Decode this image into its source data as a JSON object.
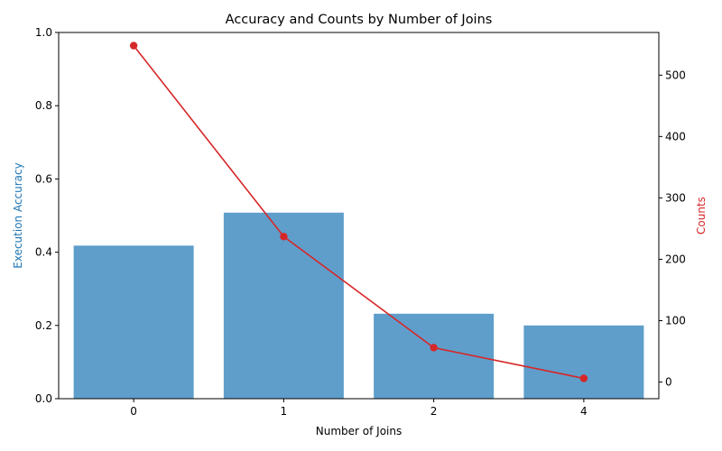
{
  "chart_data": {
    "type": "bar",
    "title": "Accuracy and Counts by Number of Joins",
    "xlabel": "Number of Joins",
    "categories": [
      "0",
      "1",
      "2",
      "4"
    ],
    "series": [
      {
        "name": "Execution Accuracy",
        "type": "bar",
        "axis": "left",
        "color": "#1f77b4",
        "values": [
          0.418,
          0.508,
          0.232,
          0.2
        ]
      },
      {
        "name": "Counts",
        "type": "line",
        "axis": "right",
        "color": "#d62728",
        "values": [
          548,
          237,
          56,
          6
        ]
      }
    ],
    "ylabel": "Execution Accuracy",
    "ylim": [
      0,
      1.0
    ],
    "yticks": [
      "0.0",
      "0.2",
      "0.4",
      "0.6",
      "0.8",
      "1.0"
    ],
    "y2label": "Counts",
    "y2lim": [
      -27.1,
      569.5
    ],
    "y2ticks": [
      "0",
      "100",
      "200",
      "300",
      "400",
      "500"
    ],
    "grid": false,
    "bar_color": "#5f9ecb",
    "line_color": "#d62728",
    "ylabel_color": "#1f77b4",
    "y2label_color": "#d62728"
  }
}
